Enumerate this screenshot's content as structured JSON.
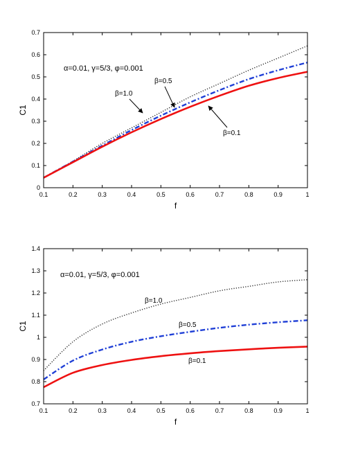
{
  "colors": {
    "beta_1_0": "#222222",
    "beta_0_5": "#1f3fd6",
    "beta_0_1": "#ee1111",
    "axis": "#000000"
  },
  "chart_data": [
    {
      "type": "line",
      "xlabel": "f",
      "ylabel": "C1",
      "xlim": [
        0.1,
        1
      ],
      "ylim": [
        0,
        0.7
      ],
      "xticks": [
        "0.1",
        "0.2",
        "0.3",
        "0.4",
        "0.5",
        "0.6",
        "0.7",
        "0.8",
        "0.9",
        "1"
      ],
      "yticks": [
        "0",
        "0.1",
        "0.2",
        "0.3",
        "0.4",
        "0.5",
        "0.6",
        "0.7"
      ],
      "annotation": "α=0.01, γ=5/3, φ=0.001",
      "grid": false,
      "x": [
        0.1,
        0.2,
        0.3,
        0.4,
        0.5,
        0.6,
        0.7,
        0.8,
        0.9,
        1.0
      ],
      "series": [
        {
          "name": "β=1.0",
          "style": "dotted",
          "color": "#222222",
          "values": [
            0.045,
            0.12,
            0.2,
            0.27,
            0.34,
            0.41,
            0.47,
            0.53,
            0.585,
            0.64
          ]
        },
        {
          "name": "β=0.5",
          "style": "dashdot",
          "color": "#1f3fd6",
          "values": [
            0.045,
            0.118,
            0.19,
            0.26,
            0.325,
            0.385,
            0.44,
            0.49,
            0.53,
            0.565
          ]
        },
        {
          "name": "β=0.1",
          "style": "solid",
          "color": "#ee1111",
          "values": [
            0.045,
            0.115,
            0.185,
            0.25,
            0.31,
            0.365,
            0.415,
            0.46,
            0.495,
            0.523
          ]
        }
      ],
      "labels": [
        {
          "text": "β=1.0",
          "series": 0
        },
        {
          "text": "β=0.5",
          "series": 1
        },
        {
          "text": "β=0.1",
          "series": 2
        }
      ]
    },
    {
      "type": "line",
      "xlabel": "f",
      "ylabel": "C1",
      "xlim": [
        0.1,
        1
      ],
      "ylim": [
        0.7,
        1.4
      ],
      "xticks": [
        "0.1",
        "0.2",
        "0.3",
        "0.4",
        "0.5",
        "0.6",
        "0.7",
        "0.8",
        "0.9",
        "1"
      ],
      "yticks": [
        "0.7",
        "0.8",
        "0.9",
        "1",
        "1.1",
        "1.2",
        "1.3",
        "1.4"
      ],
      "annotation": "α=0.01, γ=5/3, φ=0.001",
      "grid": false,
      "x": [
        0.1,
        0.2,
        0.3,
        0.4,
        0.5,
        0.6,
        0.7,
        0.8,
        0.9,
        1.0
      ],
      "series": [
        {
          "name": "β=1.0",
          "style": "dotted",
          "color": "#222222",
          "values": [
            0.85,
            0.98,
            1.06,
            1.11,
            1.15,
            1.18,
            1.21,
            1.23,
            1.25,
            1.26
          ]
        },
        {
          "name": "β=0.5",
          "style": "dashdot",
          "color": "#1f3fd6",
          "values": [
            0.81,
            0.895,
            0.945,
            0.98,
            1.005,
            1.025,
            1.043,
            1.057,
            1.068,
            1.077
          ]
        },
        {
          "name": "β=0.1",
          "style": "solid",
          "color": "#ee1111",
          "values": [
            0.775,
            0.84,
            0.875,
            0.898,
            0.915,
            0.928,
            0.938,
            0.946,
            0.953,
            0.958
          ]
        }
      ],
      "labels": [
        {
          "text": "β=1.0",
          "series": 0
        },
        {
          "text": "β=0.5",
          "series": 1
        },
        {
          "text": "β=0.1",
          "series": 2
        }
      ]
    }
  ]
}
